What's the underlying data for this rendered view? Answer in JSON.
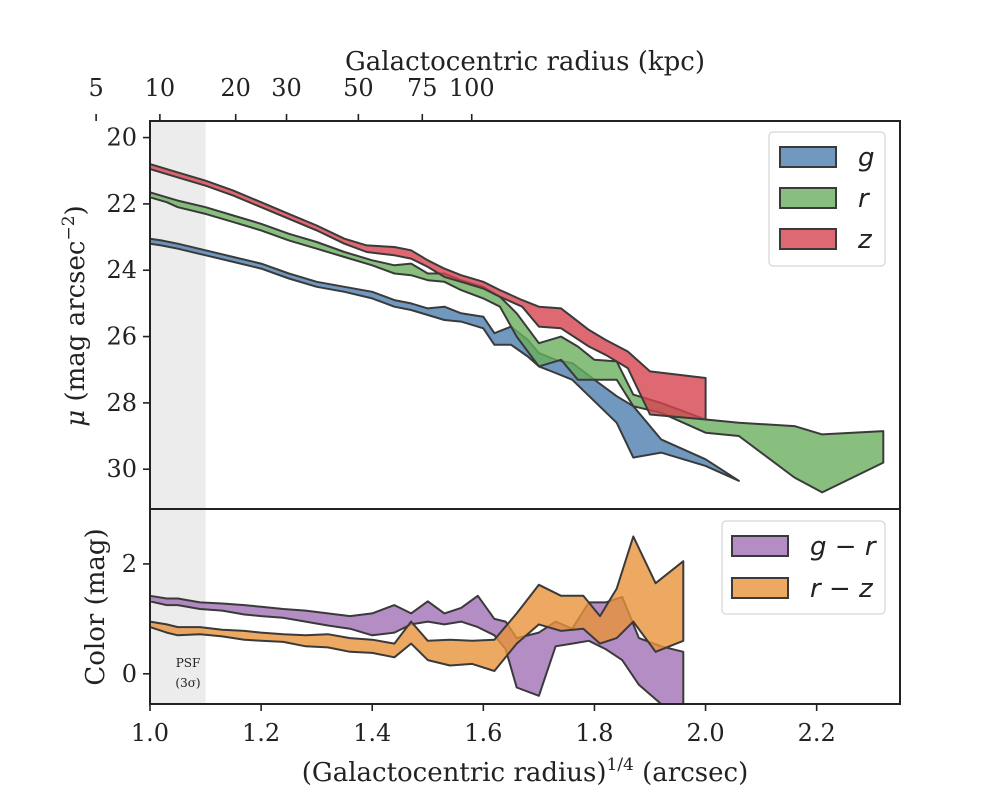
{
  "chart_data": [
    {
      "type": "area",
      "panel": "surface-brightness",
      "top_xlabel": "Galactocentric radius (kpc)",
      "top_xticks": [
        5,
        10,
        20,
        30,
        50,
        75,
        100
      ],
      "ylabel_symbol": "μ",
      "ylabel": "(mag arcsec",
      "ylabel_sup": "−2",
      "ylabel_close": ")",
      "y_inverted": true,
      "ylim": [
        31.2,
        19.5
      ],
      "yticks": [
        20,
        22,
        24,
        26,
        28,
        30
      ],
      "xlim": [
        1.0,
        2.35
      ],
      "legend_position": "top-right",
      "series": [
        {
          "name": "g",
          "color": "#4e7faf",
          "x": [
            1.0,
            1.02,
            1.05,
            1.1,
            1.15,
            1.2,
            1.25,
            1.3,
            1.35,
            1.4,
            1.44,
            1.47,
            1.5,
            1.53,
            1.56,
            1.6,
            1.62,
            1.65,
            1.68,
            1.7,
            1.73,
            1.76,
            1.8,
            1.84,
            1.87,
            1.92,
            2.0,
            2.06
          ],
          "y_bright": [
            23.05,
            23.1,
            23.2,
            23.4,
            23.6,
            23.8,
            24.1,
            24.35,
            24.5,
            24.65,
            24.9,
            25.0,
            25.15,
            25.1,
            25.3,
            25.4,
            25.9,
            25.7,
            26.1,
            26.5,
            26.7,
            26.8,
            27.3,
            27.8,
            28.1,
            29.1,
            29.7,
            30.35
          ],
          "y_faint": [
            23.2,
            23.25,
            23.35,
            23.55,
            23.75,
            23.95,
            24.25,
            24.5,
            24.65,
            24.85,
            25.1,
            25.2,
            25.35,
            25.5,
            25.55,
            25.75,
            26.25,
            26.25,
            26.6,
            26.9,
            27.1,
            27.3,
            27.95,
            28.6,
            29.65,
            29.5,
            29.9,
            30.35
          ]
        },
        {
          "name": "r",
          "color": "#6aaf5f",
          "x": [
            1.0,
            1.03,
            1.05,
            1.1,
            1.15,
            1.2,
            1.25,
            1.3,
            1.35,
            1.4,
            1.44,
            1.47,
            1.5,
            1.53,
            1.56,
            1.6,
            1.63,
            1.66,
            1.7,
            1.74,
            1.77,
            1.8,
            1.84,
            1.87,
            1.92,
            2.0,
            2.06,
            2.16,
            2.21,
            2.32
          ],
          "y_bright": [
            21.65,
            21.8,
            21.9,
            22.1,
            22.35,
            22.6,
            22.9,
            23.15,
            23.45,
            23.7,
            23.85,
            23.8,
            24.1,
            24.1,
            24.3,
            24.5,
            24.8,
            25.3,
            26.2,
            26.0,
            26.3,
            26.7,
            26.75,
            27.75,
            28.0,
            28.5,
            28.6,
            28.7,
            28.95,
            28.85
          ],
          "y_faint": [
            21.8,
            21.95,
            22.1,
            22.3,
            22.55,
            22.8,
            23.1,
            23.35,
            23.6,
            23.85,
            24.1,
            24.15,
            24.3,
            24.35,
            24.6,
            24.85,
            25.1,
            26.0,
            26.9,
            26.7,
            27.3,
            27.3,
            27.3,
            28.1,
            28.3,
            28.9,
            29.0,
            30.25,
            30.7,
            29.8
          ]
        },
        {
          "name": "z",
          "color": "#d6434f",
          "x": [
            1.0,
            1.05,
            1.1,
            1.15,
            1.2,
            1.25,
            1.3,
            1.35,
            1.39,
            1.44,
            1.47,
            1.5,
            1.53,
            1.56,
            1.6,
            1.63,
            1.67,
            1.7,
            1.74,
            1.79,
            1.82,
            1.86,
            1.9,
            2.0
          ],
          "y_bright": [
            20.8,
            21.05,
            21.3,
            21.6,
            21.95,
            22.3,
            22.65,
            23.05,
            23.25,
            23.3,
            23.4,
            23.7,
            23.95,
            24.15,
            24.35,
            24.6,
            24.9,
            25.1,
            25.15,
            25.8,
            26.1,
            26.45,
            27.05,
            27.25
          ],
          "y_faint": [
            20.95,
            21.2,
            21.45,
            21.75,
            22.1,
            22.45,
            22.8,
            23.2,
            23.45,
            23.55,
            23.65,
            23.9,
            24.2,
            24.35,
            24.55,
            24.8,
            25.1,
            25.7,
            25.75,
            26.3,
            26.55,
            26.95,
            28.35,
            28.5
          ]
        }
      ]
    },
    {
      "type": "area",
      "panel": "color",
      "xlabel": "(Galactocentric radius)",
      "xlabel_sup": "1/4",
      "xlabel_tail": " (arcsec)",
      "ylabel": "Color (mag)",
      "ylim": [
        -0.55,
        3.0
      ],
      "yticks": [
        0,
        2
      ],
      "xlim": [
        1.0,
        2.35
      ],
      "xticks": [
        "1.0",
        "1.2",
        "1.4",
        "1.6",
        "1.8",
        "2.0",
        "2.2"
      ],
      "legend_position": "top-right",
      "series": [
        {
          "name": "g − r",
          "color": "#a070b4",
          "x": [
            1.0,
            1.03,
            1.05,
            1.09,
            1.13,
            1.17,
            1.2,
            1.24,
            1.28,
            1.32,
            1.36,
            1.4,
            1.44,
            1.47,
            1.5,
            1.53,
            1.56,
            1.59,
            1.62,
            1.64,
            1.66,
            1.7,
            1.73,
            1.76,
            1.79,
            1.82,
            1.85,
            1.88,
            1.92,
            1.96
          ],
          "upper": [
            1.42,
            1.37,
            1.37,
            1.3,
            1.28,
            1.25,
            1.22,
            1.18,
            1.15,
            1.1,
            1.05,
            1.1,
            1.25,
            1.1,
            1.32,
            1.1,
            1.2,
            1.42,
            1.0,
            0.95,
            0.65,
            0.75,
            0.95,
            0.82,
            1.3,
            1.3,
            1.4,
            0.65,
            0.5,
            0.4
          ],
          "lower": [
            1.32,
            1.25,
            1.25,
            1.18,
            1.15,
            1.08,
            1.05,
            1.02,
            0.95,
            0.88,
            0.82,
            0.7,
            0.75,
            0.9,
            0.95,
            0.9,
            0.95,
            0.85,
            0.7,
            0.45,
            -0.25,
            -0.4,
            0.5,
            0.55,
            0.6,
            0.45,
            0.25,
            -0.2,
            -0.55,
            -0.55
          ]
        },
        {
          "name": "r − z",
          "color": "#e8923a",
          "x": [
            1.0,
            1.03,
            1.05,
            1.09,
            1.13,
            1.17,
            1.2,
            1.24,
            1.28,
            1.32,
            1.36,
            1.4,
            1.44,
            1.47,
            1.5,
            1.54,
            1.58,
            1.62,
            1.66,
            1.7,
            1.74,
            1.78,
            1.81,
            1.84,
            1.87,
            1.91,
            1.96
          ],
          "upper": [
            0.95,
            0.9,
            0.85,
            0.85,
            0.8,
            0.78,
            0.75,
            0.72,
            0.7,
            0.72,
            0.65,
            0.62,
            0.55,
            0.95,
            0.6,
            0.62,
            0.6,
            0.62,
            1.1,
            1.62,
            1.42,
            1.42,
            1.05,
            1.55,
            2.5,
            1.65,
            2.05
          ],
          "lower": [
            0.85,
            0.75,
            0.7,
            0.72,
            0.68,
            0.62,
            0.6,
            0.58,
            0.5,
            0.48,
            0.4,
            0.38,
            0.3,
            0.55,
            0.25,
            0.15,
            0.18,
            0.05,
            0.55,
            0.9,
            0.78,
            0.82,
            0.55,
            0.65,
            0.95,
            0.4,
            0.6
          ]
        }
      ]
    }
  ],
  "annotation": {
    "psf_line1": "PSF",
    "psf_line2": "(3σ)",
    "psf_xmax": 1.1,
    "psf_color": "#ececec"
  },
  "colors": {
    "axes": "#222222",
    "band_edge": "#3a3a3a"
  }
}
